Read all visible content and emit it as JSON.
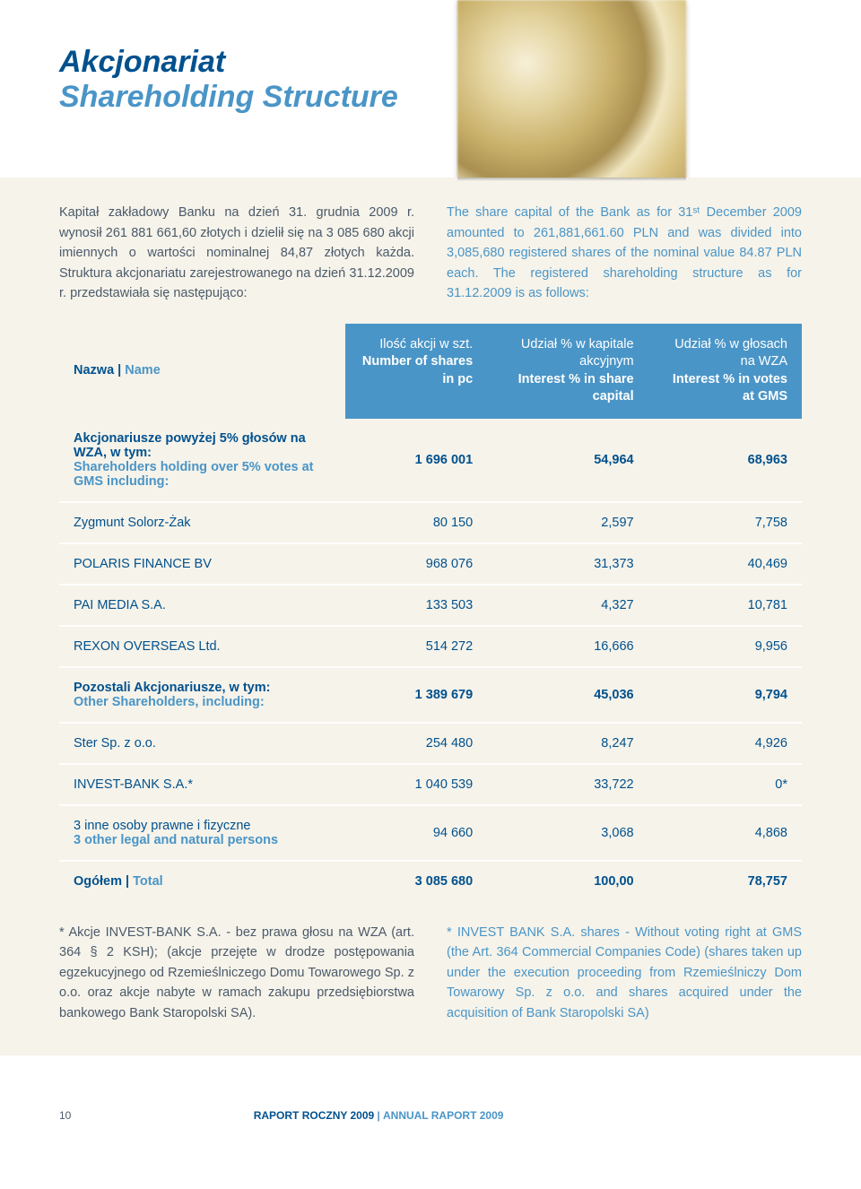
{
  "colors": {
    "primary": "#00518e",
    "secondary": "#4a95c7",
    "text": "#4a5a6a",
    "band_bg": "#f6f3ea",
    "header_bg": "#4a95c7",
    "row_primary": "#00518e",
    "report_text": "#00518e",
    "report_text_en": "#4a95c7"
  },
  "title": {
    "pl": "Akcjonariat",
    "en": "Shareholding Structure"
  },
  "intro": {
    "pl": "Kapitał zakładowy Banku na dzień 31. grudnia 2009 r. wynosił 261 881 661,60 złotych i dzielił się na 3 085 680 akcji imiennych o wartości nominalnej 84,87 złotych każda. Struktura akcjonariatu zarejestrowanego na dzień 31.12.2009 r. przedstawiała się następująco:",
    "en": "The share capital of the Bank as for 31ˢᵗ December 2009 amounted to 261,881,661.60 PLN and was divided into 3,085,680 registered shares of the nominal value 84.87 PLN each. The registered shareholding structure as for 31.12.2009 is as follows:"
  },
  "table": {
    "header": {
      "name_pl": "Nazwa",
      "name_en": "Name",
      "col1_pl": "Ilość akcji w szt.",
      "col1_en": "Number of shares in pc",
      "col2_pl": "Udział % w kapitale akcyjnym",
      "col2_en": "Interest % in share capital",
      "col3_pl": "Udział % w głosach na WZA",
      "col3_en": "Interest % in votes at GMS"
    },
    "rows": [
      {
        "label_pl": "Akcjonariusze powyżej 5% głosów na WZA, w tym:",
        "label_en": "Shareholders holding over 5% votes at GMS including:",
        "c1": "1 696 001",
        "c2": "54,964",
        "c3": "68,963",
        "bold": true
      },
      {
        "label_pl": "Zygmunt Solorz-Żak",
        "label_en": "",
        "c1": "80 150",
        "c2": "2,597",
        "c3": "7,758",
        "bold": false
      },
      {
        "label_pl": "POLARIS FINANCE BV",
        "label_en": "",
        "c1": "968 076",
        "c2": "31,373",
        "c3": "40,469",
        "bold": false
      },
      {
        "label_pl": "PAI MEDIA S.A.",
        "label_en": "",
        "c1": "133 503",
        "c2": "4,327",
        "c3": "10,781",
        "bold": false
      },
      {
        "label_pl": "REXON OVERSEAS Ltd.",
        "label_en": "",
        "c1": "514 272",
        "c2": "16,666",
        "c3": "9,956",
        "bold": false
      },
      {
        "label_pl": "Pozostali Akcjonariusze, w tym:",
        "label_en": "Other Shareholders, including:",
        "c1": "1 389 679",
        "c2": "45,036",
        "c3": "9,794",
        "bold": true
      },
      {
        "label_pl": "Ster Sp. z o.o.",
        "label_en": "",
        "c1": "254 480",
        "c2": "8,247",
        "c3": "4,926",
        "bold": false
      },
      {
        "label_pl": "INVEST-BANK S.A.*",
        "label_en": "",
        "c1": "1 040 539",
        "c2": "33,722",
        "c3": "0*",
        "bold": false
      },
      {
        "label_pl": "3 inne osoby prawne i fizyczne",
        "label_en": "3 other legal and natural persons",
        "c1": "94 660",
        "c2": "3,068",
        "c3": "4,868",
        "bold": false
      },
      {
        "label_pl": "Ogółem",
        "label_en": "Total",
        "c1": "3 085 680",
        "c2": "100,00",
        "c3": "78,757",
        "bold": true,
        "total": true
      }
    ]
  },
  "footnote": {
    "pl": "* Akcje INVEST-BANK S.A. - bez prawa głosu na WZA (art. 364 § 2 KSH); (akcje przejęte w drodze postępowania egzekucyjnego od Rzemieślniczego Domu Towarowego Sp. z o.o. oraz akcje nabyte w ramach zakupu przedsiębiorstwa bankowego Bank Staropolski SA).",
    "en": "* INVEST BANK S.A. shares - Without voting right at GMS (the Art. 364 Commercial Companies Code) (shares taken up under the execution proceeding from Rzemieślniczy Dom Towarowy Sp. z o.o. and shares acquired under the acquisition of Bank Staropolski SA)"
  },
  "pagefoot": {
    "page": "10",
    "pl": "RAPORT ROCZNY 2009",
    "sep": " | ",
    "en": "ANNUAL RAPORT 2009"
  }
}
